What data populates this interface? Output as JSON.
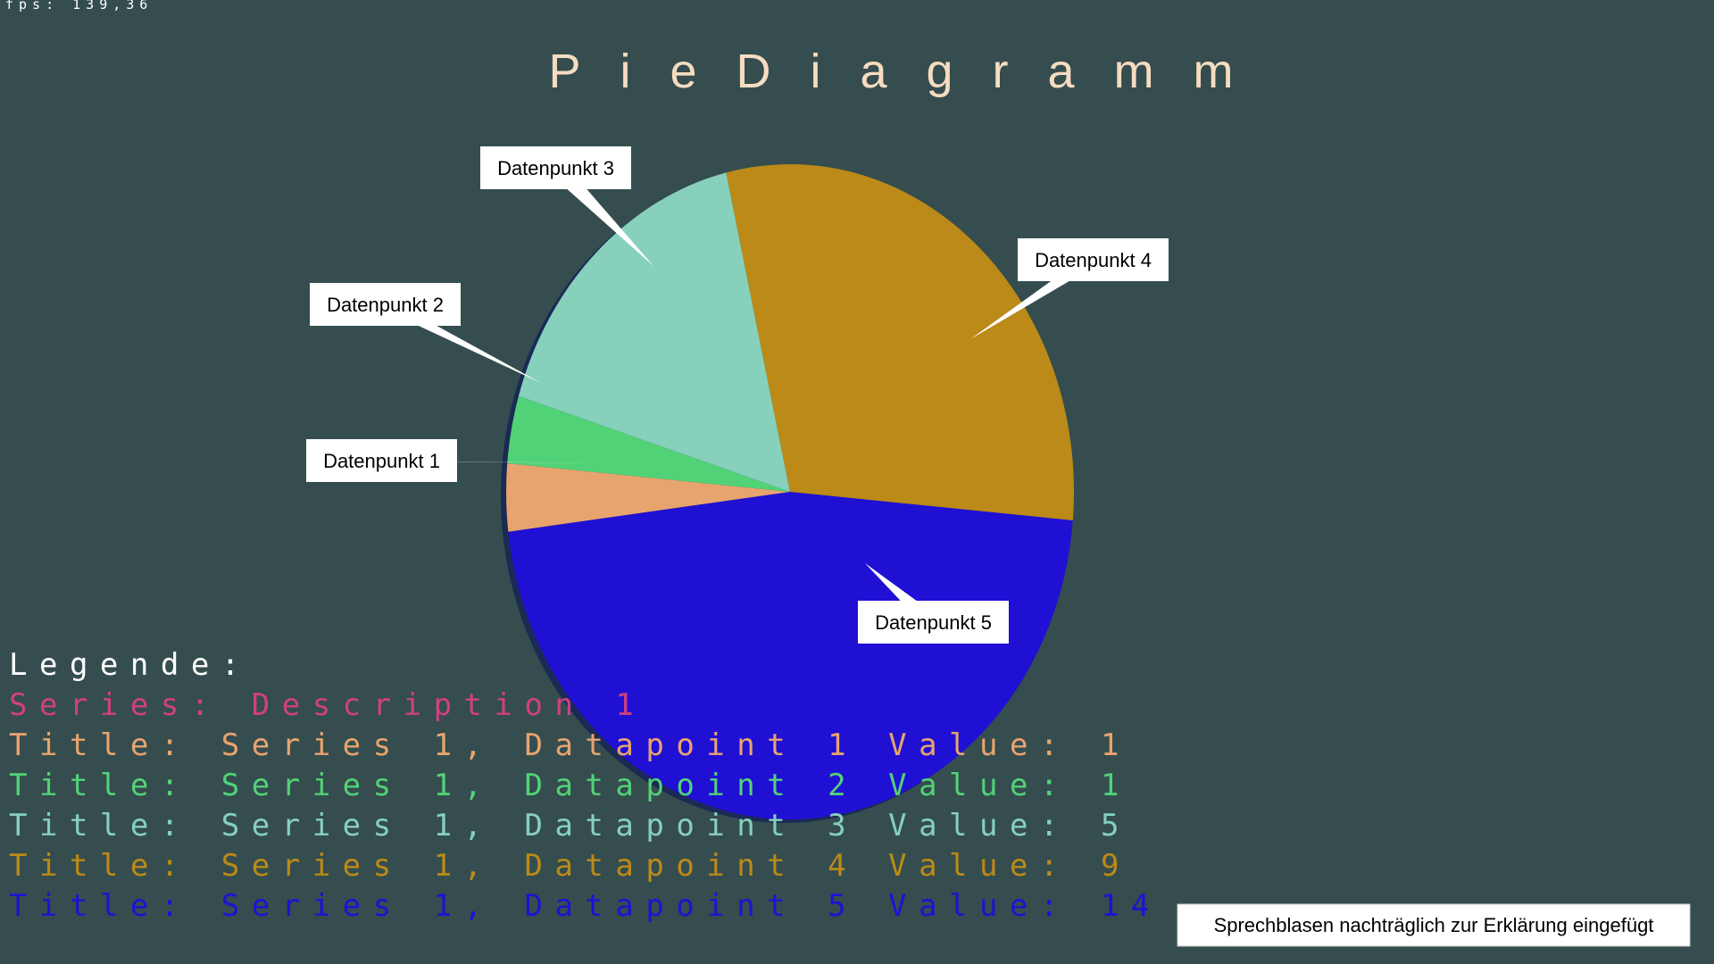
{
  "fps": "fps: 139,36",
  "chart_data": {
    "type": "pie",
    "title": "PieDiagramm",
    "categories": [
      "Datenpunkt 1",
      "Datenpunkt 2",
      "Datenpunkt 3",
      "Datenpunkt 4",
      "Datenpunkt 5"
    ],
    "values": [
      1,
      1,
      5,
      9,
      14
    ],
    "colors": [
      "#e8a46e",
      "#52d277",
      "#86d0bc",
      "#bb8a18",
      "#2010d4"
    ],
    "legend": {
      "heading": "Legende:",
      "series": "Series: Description 1",
      "entries": [
        "Title: Series 1, Datapoint 1 Value:",
        "Title: Series 1, Datapoint 2 Value:",
        "Title: Series 1, Datapoint 3 Value:",
        "Title: Series 1, Datapoint 4 Value:",
        "Title: Series 1, Datapoint 5 Value:"
      ]
    }
  },
  "note": "Sprechblasen nachträglich zur Erklärung eingefügt"
}
